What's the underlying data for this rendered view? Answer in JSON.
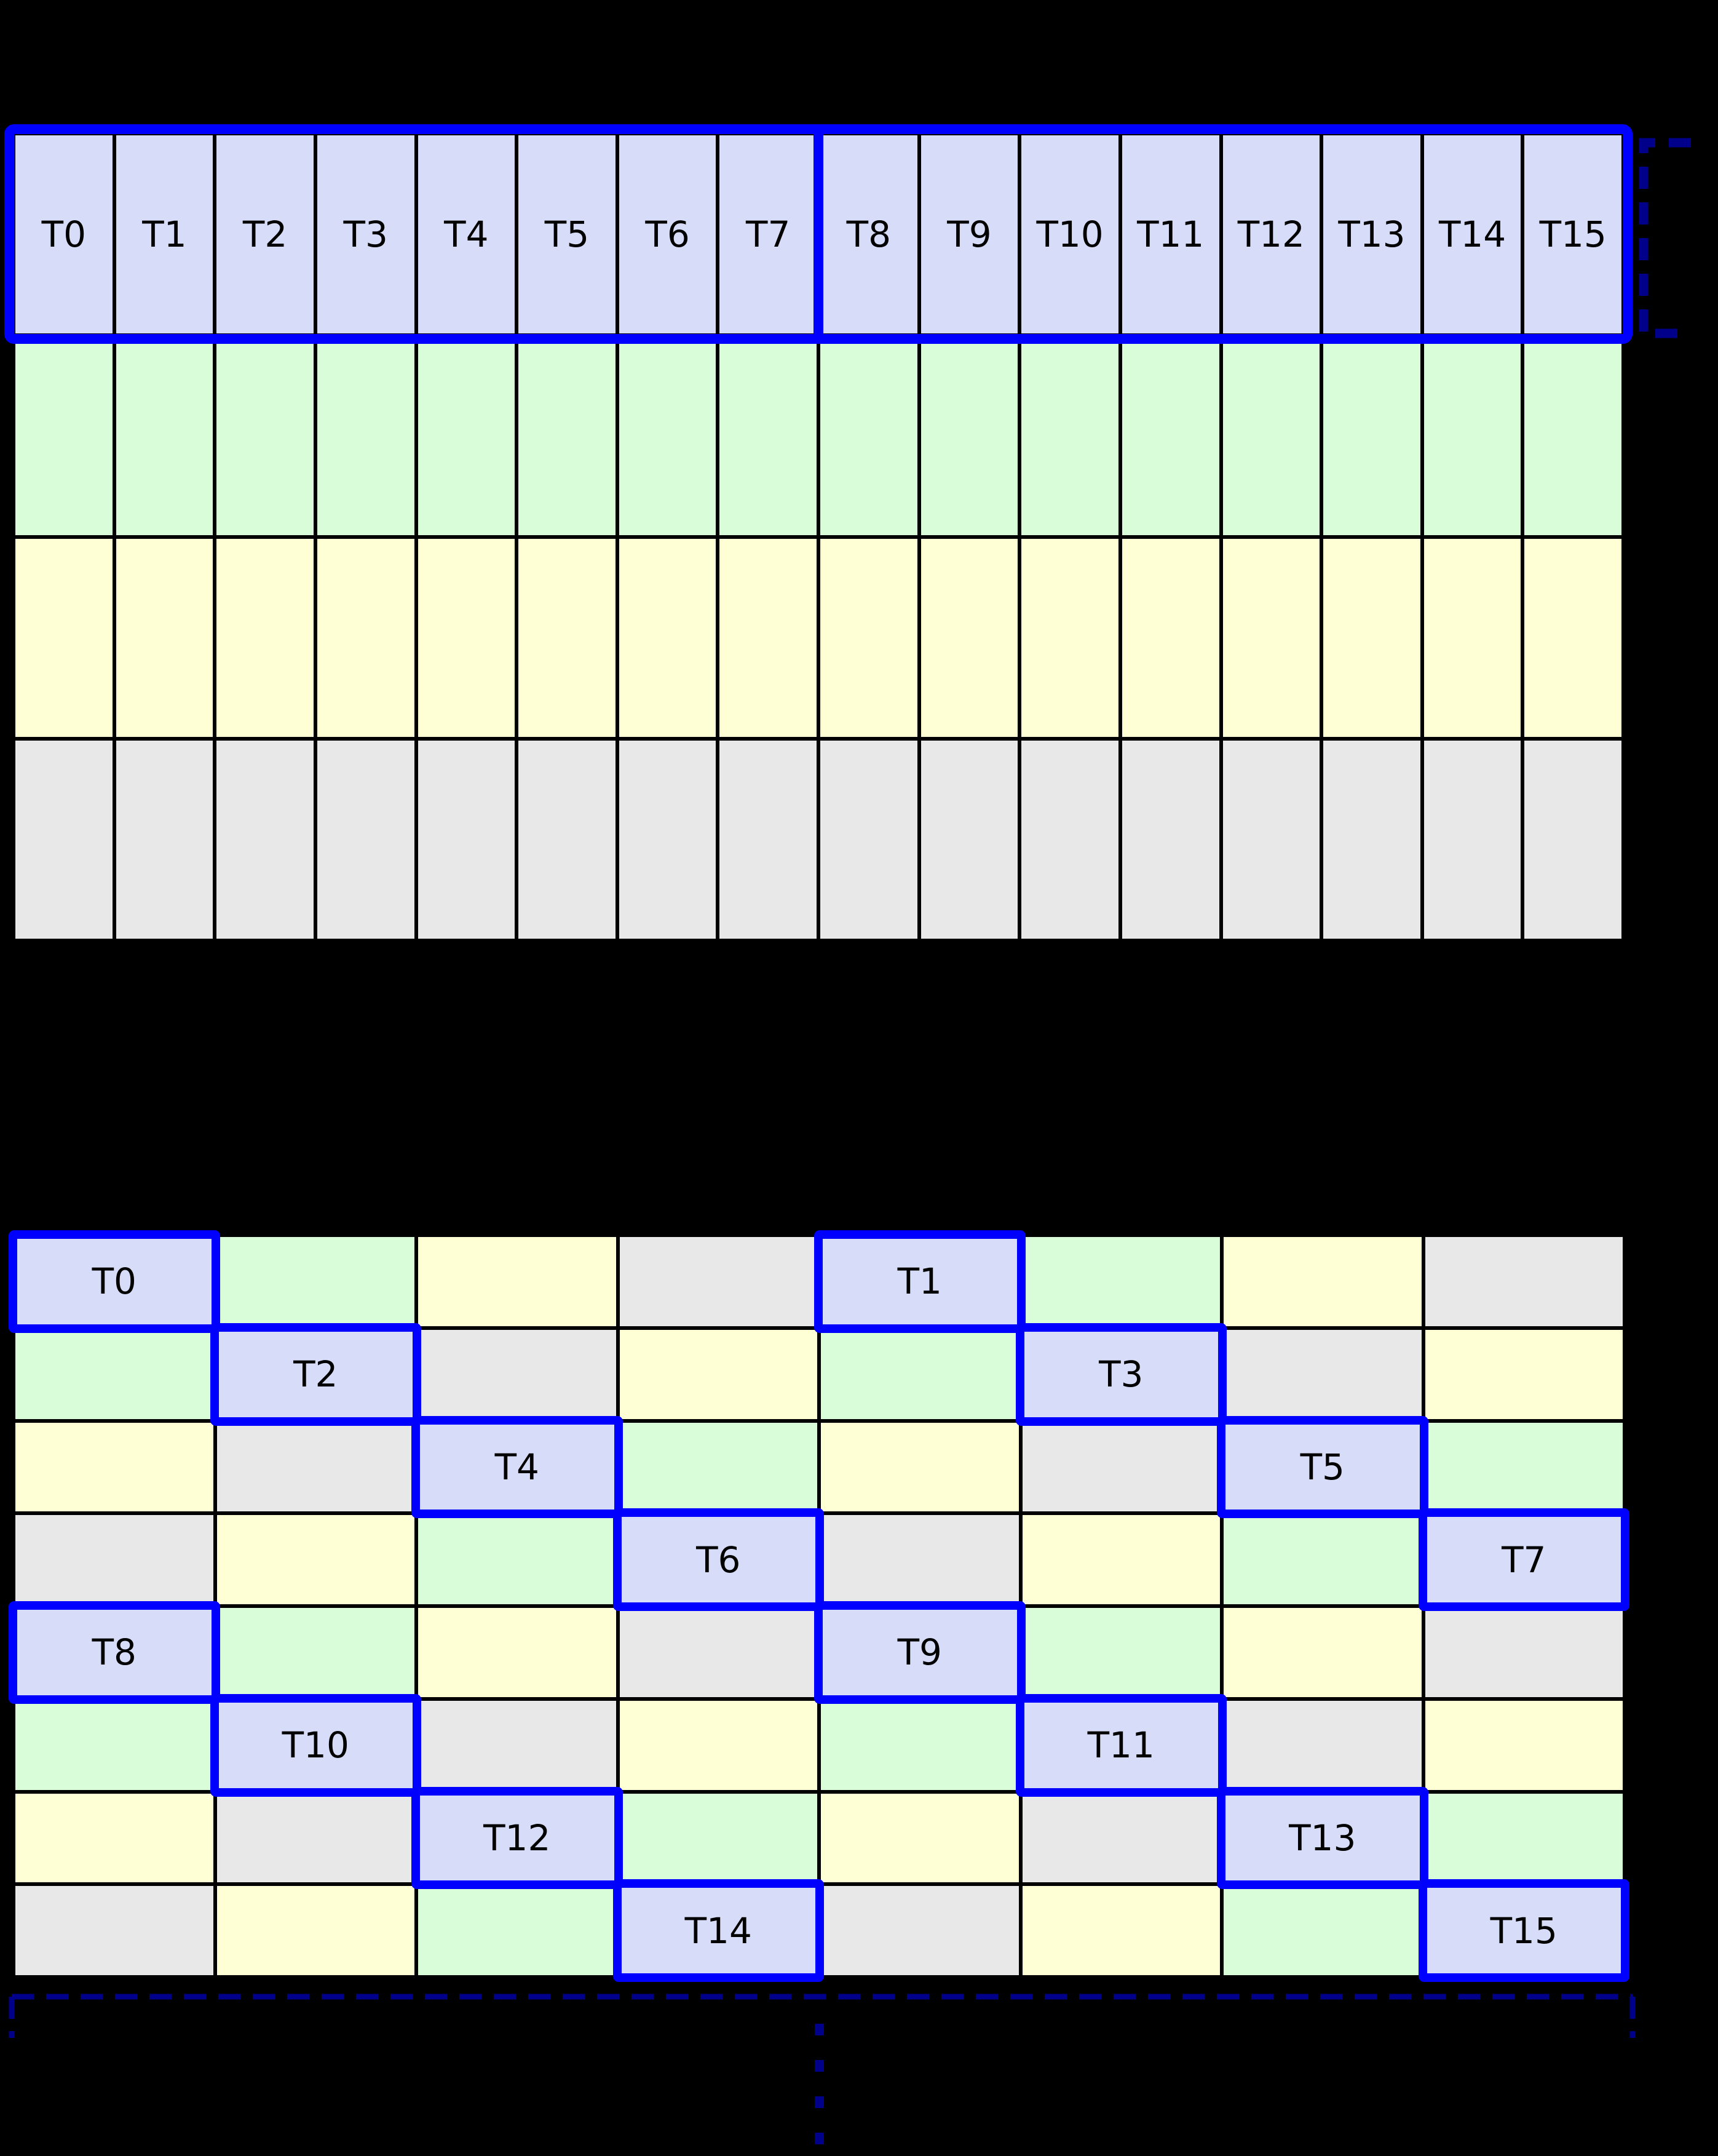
{
  "diagram": {
    "background": "#000000",
    "colors": {
      "highlight_blue": "#0000ff",
      "bracket_navy": "#00008b",
      "thread_cell": "#d7ddf8",
      "green_cell": "#d9fcd9",
      "yellow_cell": "#ffffd6",
      "gray_cell": "#e8e8e8",
      "grid_line": "#000000",
      "label_color": "#000000"
    },
    "top_grid": {
      "columns": 16,
      "rows": 4,
      "thread_labels": [
        "T0",
        "T1",
        "T2",
        "T3",
        "T4",
        "T5",
        "T6",
        "T7",
        "T8",
        "T9",
        "T10",
        "T11",
        "T12",
        "T13",
        "T14",
        "T15"
      ],
      "row_fills": [
        "thread_cell",
        "green_cell",
        "yellow_cell",
        "gray_cell"
      ],
      "highlighted_row": 0,
      "divider_after_column": 8
    },
    "bottom_grid": {
      "columns": 8,
      "rows": 8,
      "cells": [
        [
          "b:T0",
          "g",
          "y",
          "e",
          "b:T1",
          "g",
          "y",
          "e"
        ],
        [
          "g",
          "b:T2",
          "e",
          "y",
          "g",
          "b:T3",
          "e",
          "y"
        ],
        [
          "y",
          "e",
          "b:T4",
          "g",
          "y",
          "e",
          "b:T5",
          "g"
        ],
        [
          "e",
          "y",
          "g",
          "b:T6",
          "e",
          "y",
          "g",
          "b:T7"
        ],
        [
          "b:T8",
          "g",
          "y",
          "e",
          "b:T9",
          "g",
          "y",
          "e"
        ],
        [
          "g",
          "b:T10",
          "e",
          "y",
          "g",
          "b:T11",
          "e",
          "y"
        ],
        [
          "y",
          "e",
          "b:T12",
          "g",
          "y",
          "e",
          "b:T13",
          "g"
        ],
        [
          "e",
          "y",
          "g",
          "b:T14",
          "e",
          "y",
          "g",
          "b:T15"
        ]
      ],
      "cell_fill_codes": {
        "b": "thread_cell",
        "g": "green_cell",
        "y": "yellow_cell",
        "e": "gray_cell"
      }
    },
    "annotations": {
      "row_bracket": {
        "style": "dashed",
        "orientation": "right-of-first-row"
      },
      "bottom_bracket": {
        "style": "dashed",
        "orientation": "below-grid-full-width"
      },
      "continuation_dots_count": 4
    }
  }
}
